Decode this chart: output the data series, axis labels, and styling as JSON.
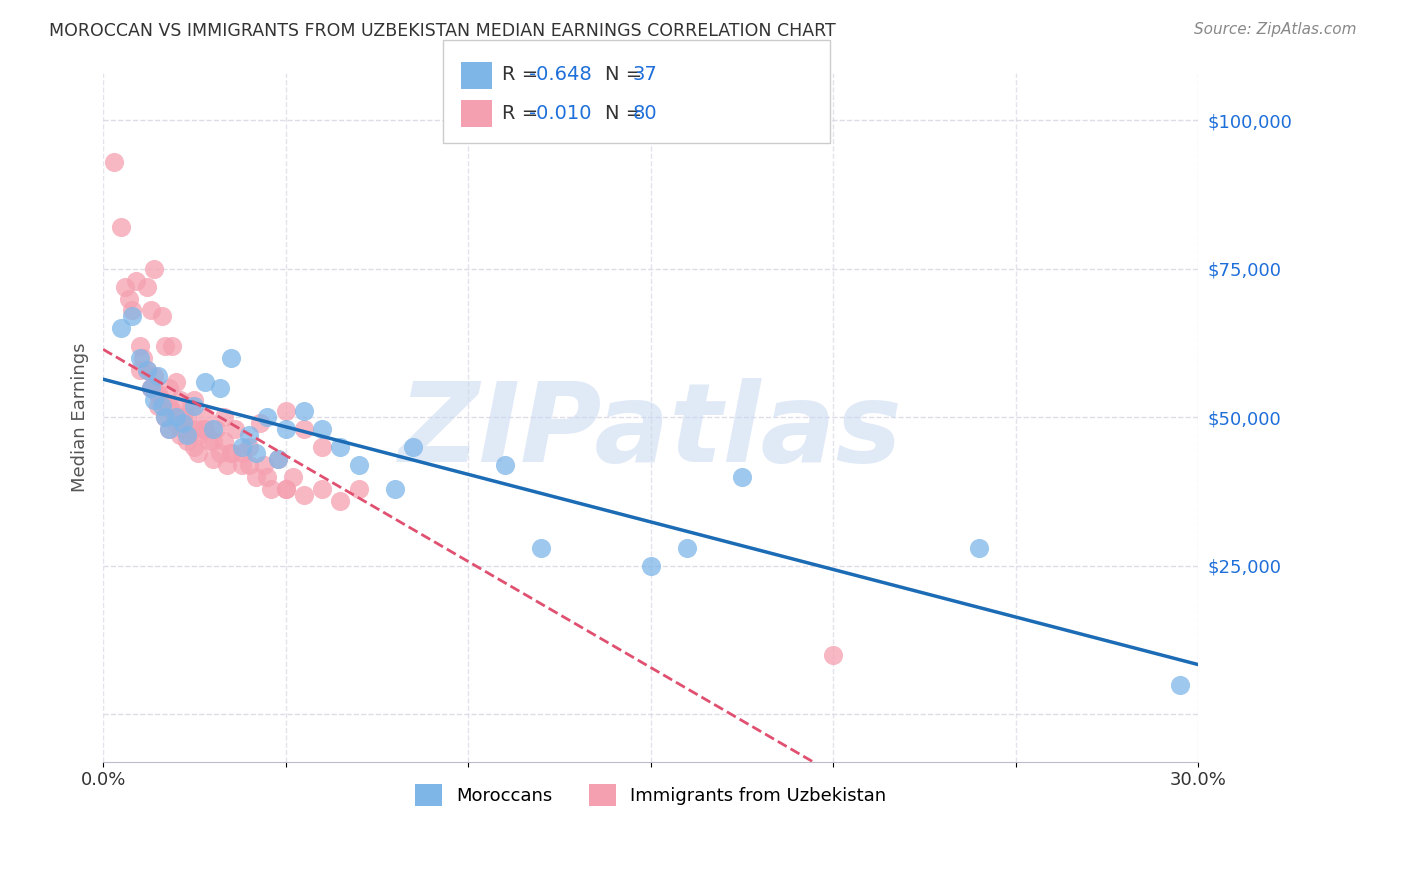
{
  "title": "MOROCCAN VS IMMIGRANTS FROM UZBEKISTAN MEDIAN EARNINGS CORRELATION CHART",
  "source": "Source: ZipAtlas.com",
  "ylabel": "Median Earnings",
  "y_ticks": [
    0,
    25000,
    50000,
    75000,
    100000
  ],
  "y_tick_labels": [
    "",
    "$25,000",
    "$50,000",
    "$75,000",
    "$100,000"
  ],
  "xlim": [
    0.0,
    0.3
  ],
  "ylim": [
    -8000,
    108000
  ],
  "blue_color": "#7EB6E8",
  "pink_color": "#F5A0B0",
  "trend_blue": "#1B6BB5",
  "trend_pink": "#E05070",
  "watermark": "ZIPatlas",
  "watermark_color": "#C8D8F0",
  "background": "#FFFFFF",
  "grid_color": "#DDDDE8",
  "moroccans_label": "Moroccans",
  "uzbekistan_label": "Immigrants from Uzbekistan",
  "legend_color": "#1E6FD9",
  "blue_scatter_x": [
    0.005,
    0.008,
    0.01,
    0.012,
    0.013,
    0.014,
    0.015,
    0.016,
    0.017,
    0.018,
    0.02,
    0.022,
    0.023,
    0.025,
    0.028,
    0.03,
    0.032,
    0.035,
    0.038,
    0.04,
    0.042,
    0.045,
    0.048,
    0.05,
    0.055,
    0.06,
    0.065,
    0.07,
    0.08,
    0.085,
    0.11,
    0.12,
    0.15,
    0.16,
    0.175,
    0.24,
    0.295
  ],
  "blue_scatter_y": [
    65000,
    67000,
    60000,
    58000,
    55000,
    53000,
    57000,
    52000,
    50000,
    48000,
    50000,
    49000,
    47000,
    52000,
    56000,
    48000,
    55000,
    60000,
    45000,
    47000,
    44000,
    50000,
    43000,
    48000,
    51000,
    48000,
    45000,
    42000,
    38000,
    45000,
    42000,
    28000,
    25000,
    28000,
    40000,
    28000,
    5000
  ],
  "pink_scatter_x": [
    0.003,
    0.005,
    0.006,
    0.007,
    0.008,
    0.009,
    0.01,
    0.011,
    0.012,
    0.012,
    0.013,
    0.013,
    0.014,
    0.014,
    0.015,
    0.015,
    0.016,
    0.016,
    0.017,
    0.017,
    0.018,
    0.018,
    0.019,
    0.019,
    0.02,
    0.02,
    0.021,
    0.021,
    0.022,
    0.022,
    0.023,
    0.023,
    0.024,
    0.024,
    0.025,
    0.025,
    0.026,
    0.026,
    0.027,
    0.028,
    0.029,
    0.03,
    0.031,
    0.032,
    0.033,
    0.034,
    0.035,
    0.036,
    0.038,
    0.04,
    0.042,
    0.044,
    0.046,
    0.048,
    0.05,
    0.052,
    0.055,
    0.06,
    0.065,
    0.07,
    0.013,
    0.018,
    0.022,
    0.028,
    0.033,
    0.038,
    0.043,
    0.05,
    0.055,
    0.06,
    0.01,
    0.015,
    0.02,
    0.025,
    0.03,
    0.035,
    0.04,
    0.045,
    0.05,
    0.2
  ],
  "pink_scatter_y": [
    93000,
    82000,
    72000,
    70000,
    68000,
    73000,
    62000,
    60000,
    58000,
    72000,
    55000,
    68000,
    57000,
    75000,
    52000,
    54000,
    53000,
    67000,
    50000,
    62000,
    48000,
    55000,
    51000,
    62000,
    49000,
    56000,
    47000,
    53000,
    50000,
    48000,
    50000,
    46000,
    48000,
    52000,
    45000,
    53000,
    47000,
    44000,
    48000,
    50000,
    46000,
    43000,
    48000,
    44000,
    50000,
    42000,
    44000,
    48000,
    42000,
    45000,
    40000,
    42000,
    38000,
    43000,
    38000,
    40000,
    37000,
    38000,
    36000,
    38000,
    55000,
    52000,
    50000,
    48000,
    46000,
    44000,
    49000,
    51000,
    48000,
    45000,
    58000,
    54000,
    50000,
    48000,
    46000,
    44000,
    42000,
    40000,
    38000,
    10000
  ]
}
